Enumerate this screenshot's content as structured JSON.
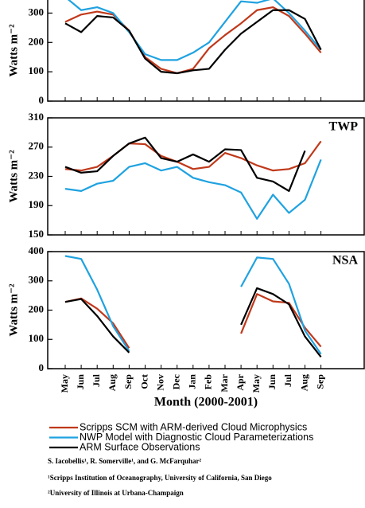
{
  "chart_data": [
    {
      "type": "line",
      "ylabel": "Watts m⁻²",
      "categories": [
        "May",
        "Jun",
        "Jul",
        "Aug",
        "Sep",
        "Oct",
        "Nov",
        "Dec",
        "Jan",
        "Feb",
        "Mar",
        "Apr",
        "May",
        "Jun",
        "Jul",
        "Aug",
        "Sep"
      ],
      "ylim": [
        0,
        350
      ],
      "yticks": [
        0,
        100,
        200,
        300
      ],
      "series": [
        {
          "color": "#c0391b",
          "values": [
            270,
            295,
            305,
            295,
            240,
            150,
            110,
            95,
            110,
            180,
            225,
            265,
            310,
            320,
            290,
            230,
            165
          ]
        },
        {
          "color": "#1fa2e0",
          "values": [
            355,
            310,
            320,
            300,
            235,
            160,
            140,
            140,
            165,
            200,
            270,
            340,
            335,
            350,
            300,
            240,
            175
          ]
        },
        {
          "color": "#000000",
          "values": [
            265,
            235,
            290,
            285,
            240,
            145,
            100,
            95,
            105,
            110,
            175,
            230,
            270,
            310,
            310,
            280,
            175
          ]
        }
      ]
    },
    {
      "type": "line",
      "ylabel": "Watts m⁻²",
      "label": "TWP",
      "categories": [
        "May",
        "Jun",
        "Jul",
        "Aug",
        "Sep",
        "Oct",
        "Nov",
        "Dec",
        "Jan",
        "Feb",
        "Mar",
        "Apr",
        "May",
        "Jun",
        "Jul",
        "Aug",
        "Sep"
      ],
      "ylim": [
        150,
        310
      ],
      "yticks": [
        150,
        190,
        230,
        270,
        310
      ],
      "series": [
        {
          "color": "#c0391b",
          "values": [
            240,
            238,
            243,
            258,
            275,
            274,
            258,
            250,
            240,
            243,
            262,
            255,
            245,
            238,
            240,
            248,
            278
          ]
        },
        {
          "color": "#1fa2e0",
          "values": [
            213,
            210,
            220,
            224,
            243,
            248,
            238,
            243,
            228,
            222,
            218,
            208,
            172,
            205,
            180,
            198,
            253
          ]
        },
        {
          "color": "#000000",
          "values": [
            243,
            235,
            237,
            258,
            275,
            283,
            255,
            250,
            260,
            250,
            267,
            266,
            228,
            223,
            210,
            265,
            null
          ]
        }
      ]
    },
    {
      "type": "line",
      "ylabel": "Watts m⁻²",
      "label": "NSA",
      "xlabel": "Month (2000-2001)",
      "categories": [
        "May",
        "Jun",
        "Jul",
        "Aug",
        "Sep",
        "Oct",
        "Nov",
        "Dec",
        "Jan",
        "Feb",
        "Mar",
        "Apr",
        "May",
        "Jun",
        "Jul",
        "Aug",
        "Sep"
      ],
      "ylim": [
        0,
        400
      ],
      "yticks": [
        0,
        100,
        200,
        300,
        400
      ],
      "series": [
        {
          "name": "Scripps SCM with ARM-derived Cloud Microphysics",
          "color": "#c0391b",
          "values": [
            228,
            240,
            205,
            155,
            70,
            null,
            null,
            null,
            null,
            null,
            null,
            120,
            255,
            230,
            225,
            140,
            75
          ]
        },
        {
          "name": "NWP Model with Diagnostic Cloud Parameterizations",
          "color": "#1fa2e0",
          "values": [
            385,
            375,
            270,
            145,
            60,
            null,
            null,
            null,
            null,
            null,
            null,
            280,
            380,
            375,
            290,
            130,
            50
          ]
        },
        {
          "name": "ARM Surface Observations",
          "color": "#000000",
          "values": [
            228,
            238,
            180,
            110,
            55,
            null,
            null,
            null,
            null,
            null,
            null,
            150,
            275,
            255,
            220,
            110,
            40
          ]
        }
      ]
    }
  ],
  "credits": [
    "S. Iacobellis¹, R. Somerville¹, and G. McFarquhar²",
    "¹Scripps Institution of Oceanography, University of California, San Diego",
    "²University of Illinois at Urbana-Champaign"
  ]
}
